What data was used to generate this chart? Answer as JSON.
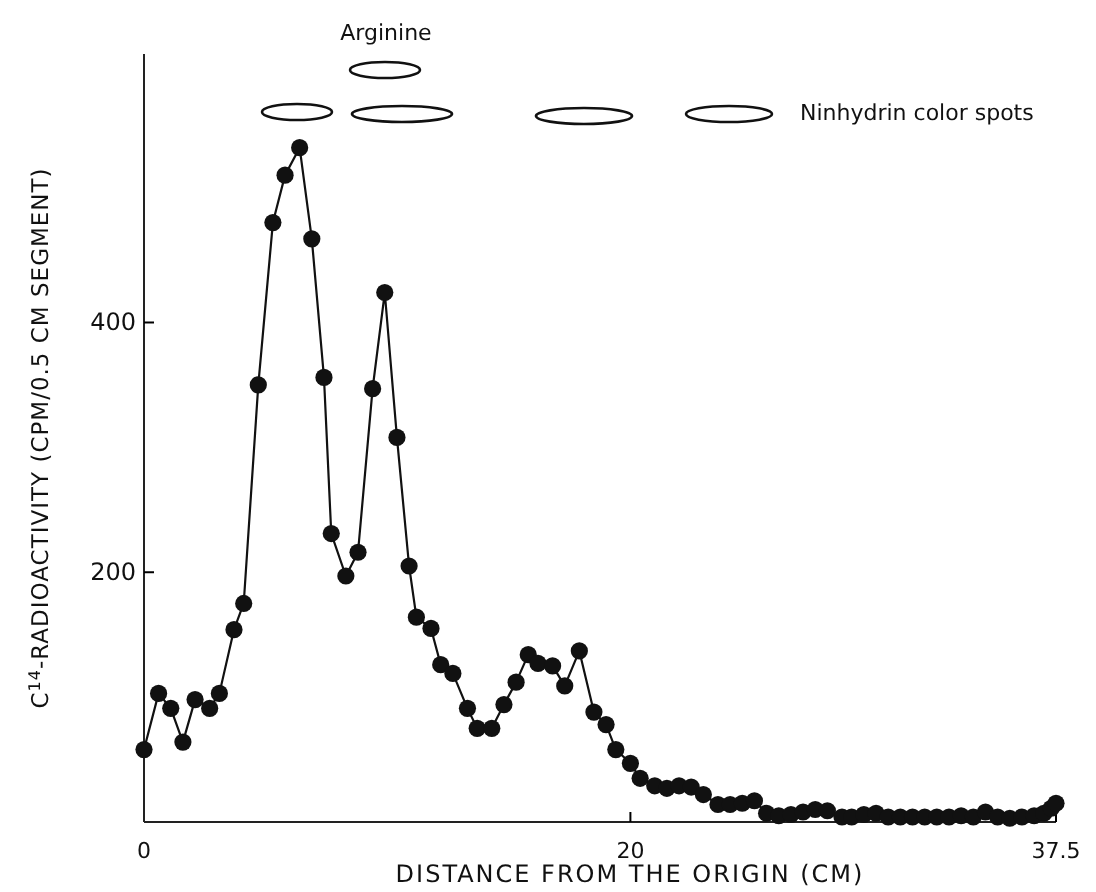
{
  "chart_data": {
    "type": "line",
    "xlabel": "DISTANCE FROM THE ORIGIN (CM)",
    "ylabel": "C$^{14}$-RADIOACTIVITY (CPM/0.5 CM SEGMENT)",
    "annotations": [
      "Arginine",
      "Ninhydrin color spots"
    ],
    "xlim": [
      0,
      37.5
    ],
    "xticks": [
      0,
      20,
      37.5
    ],
    "ylim": [
      0,
      615
    ],
    "yticks": [
      200,
      400
    ],
    "marker": "circle",
    "grid": false,
    "series": [
      {
        "color": "#111111",
        "x": [
          0,
          0.6,
          1.1,
          1.6,
          2.1,
          2.7,
          3.1,
          3.7,
          4.1,
          4.7,
          5.3,
          5.8,
          6.4,
          6.9,
          7.4,
          7.7,
          8.3,
          8.8,
          9.4,
          9.9,
          10.4,
          10.9,
          11.2,
          11.8,
          12.2,
          12.7,
          13.3,
          13.7,
          14.3,
          14.8,
          15.3,
          15.8,
          16.2,
          16.8,
          17.3,
          17.9,
          18.5,
          19.0,
          19.4,
          20.0,
          20.4,
          21.0,
          21.5,
          22.0,
          22.5,
          23.0,
          23.6,
          24.1,
          24.6,
          25.1,
          25.6,
          26.1,
          26.6,
          27.1,
          27.6,
          28.1,
          28.7,
          29.1,
          29.6,
          30.1,
          30.6,
          31.1,
          31.6,
          32.1,
          32.6,
          33.1,
          33.6,
          34.1,
          34.6,
          35.1,
          35.6,
          36.1,
          36.6,
          37.0,
          37.3,
          37.5
        ],
        "values": [
          58,
          103,
          91,
          64,
          98,
          91,
          103,
          154,
          175,
          350,
          480,
          518,
          540,
          467,
          356,
          231,
          197,
          216,
          347,
          424,
          308,
          205,
          164,
          155,
          126,
          119,
          91,
          75,
          75,
          94,
          112,
          134,
          127,
          125,
          109,
          137,
          88,
          78,
          58,
          47,
          35,
          29,
          27,
          29,
          28,
          22,
          14,
          14,
          15,
          17,
          7,
          5,
          6,
          8,
          10,
          9,
          4,
          4,
          6,
          7,
          4,
          4,
          4,
          4,
          4,
          4,
          5,
          4,
          8,
          4,
          3,
          4,
          5,
          7,
          11,
          15
        ]
      }
    ]
  }
}
